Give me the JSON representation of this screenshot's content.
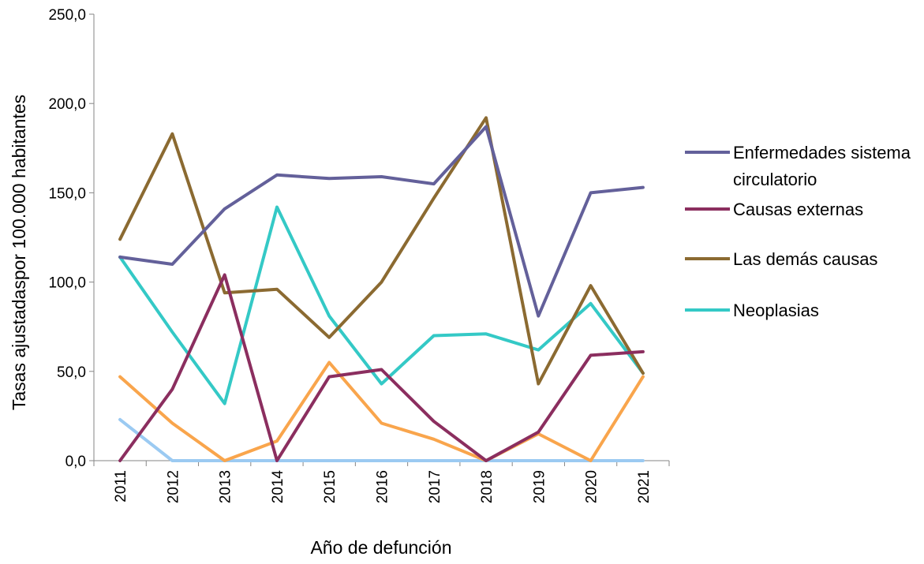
{
  "chart_data": {
    "type": "line",
    "xlabel": "Año de defunción",
    "ylabel": "Tasas ajustadaspor 100.000 habitantes",
    "ylim": [
      0,
      250
    ],
    "yticks": [
      "0,0",
      "50,0",
      "100,0",
      "150,0",
      "200,0",
      "250,0"
    ],
    "ytick_values": [
      0,
      50,
      100,
      150,
      200,
      250
    ],
    "categories": [
      "2011",
      "2012",
      "2013",
      "2014",
      "2015",
      "2016",
      "2017",
      "2018",
      "2019",
      "2020",
      "2021"
    ],
    "grid": false,
    "legend_position": "right",
    "series": [
      {
        "name": "Enfermedades sistema circulatorio",
        "legend_lines": [
          "Enfermedades sistema",
          "circulatorio"
        ],
        "color": "#63609a",
        "values": [
          114,
          110,
          141,
          160,
          158,
          159,
          155,
          187,
          81,
          150,
          153
        ]
      },
      {
        "name": "Causas externas",
        "legend_lines": [
          "Causas externas"
        ],
        "color": "#8b2e5f",
        "values": [
          0,
          40,
          104,
          0,
          47,
          51,
          22,
          0,
          16,
          59,
          61
        ]
      },
      {
        "name": "Las demás causas",
        "legend_lines": [
          "Las demás causas"
        ],
        "color": "#8b6a31",
        "values": [
          124,
          183,
          94,
          96,
          69,
          100,
          147,
          192,
          43,
          98,
          49
        ]
      },
      {
        "name": "Neoplasias",
        "legend_lines": [
          "Neoplasias"
        ],
        "color": "#34c9c6",
        "values": [
          114,
          72,
          32,
          142,
          81,
          43,
          70,
          71,
          62,
          88,
          49
        ]
      },
      {
        "color": "#f9a54c",
        "values": [
          47,
          21,
          0,
          11,
          55,
          21,
          12,
          0,
          15,
          0,
          47
        ]
      },
      {
        "color": "#9bcaf2",
        "values": [
          23,
          0,
          0,
          0,
          0,
          0,
          0,
          0,
          0,
          0,
          0
        ]
      }
    ]
  }
}
